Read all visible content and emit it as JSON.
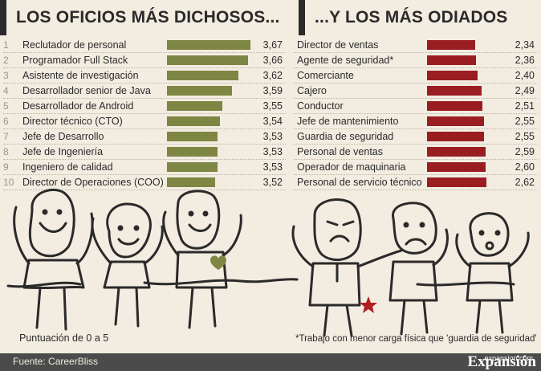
{
  "left_title": "LOS OFICIOS MÁS DICHOSOS...",
  "right_title": "...Y LOS MÁS ODIADOS",
  "scale_note": "Puntuación de 0 a 5",
  "footnote": "*Trabajo con menor carga física que 'guardia de seguridad'",
  "source": "Fuente: CareerBliss",
  "brand": "Expansión",
  "brand_url": "expansion.com",
  "colors": {
    "happy_bar": "#7d8642",
    "hated_bar": "#9a1d22",
    "background": "#f2ece1",
    "footer": "#4b4b4b",
    "star": "#b01e23",
    "heart": "#7d8642"
  },
  "chart_data": [
    {
      "type": "bar",
      "title": "LOS OFICIOS MÁS DICHOSOS...",
      "ranks": [
        "1",
        "2",
        "3",
        "4",
        "5",
        "6",
        "7",
        "8",
        "9",
        "10"
      ],
      "categories": [
        "Reclutador de personal",
        "Programador Full Stack",
        "Asistente de investigación",
        "Desarrollador senior de Java",
        "Desarrollador de Android",
        "Director técnico (CTO)",
        "Jefe de Desarrollo",
        "Jefe de Ingeniería",
        "Ingeniero de calidad",
        "Director de Operaciones (COO)"
      ],
      "values": [
        3.67,
        3.66,
        3.62,
        3.59,
        3.55,
        3.54,
        3.53,
        3.53,
        3.53,
        3.52
      ],
      "value_labels": [
        "3,67",
        "3,66",
        "3,62",
        "3,59",
        "3,55",
        "3,54",
        "3,53",
        "3,53",
        "3,53",
        "3,52"
      ],
      "orientation": "horizontal",
      "xlim": [
        0,
        5
      ]
    },
    {
      "type": "bar",
      "title": "...Y LOS MÁS ODIADOS",
      "categories": [
        "Director de ventas",
        "Agente de seguridad*",
        "Comerciante",
        "Cajero",
        "Conductor",
        "Jefe de mantenimiento",
        "Guardia de seguridad",
        "Personal de ventas",
        "Operador de maquinaria",
        "Personal de servicio técnico"
      ],
      "values": [
        2.34,
        2.36,
        2.4,
        2.49,
        2.51,
        2.55,
        2.55,
        2.59,
        2.6,
        2.62
      ],
      "value_labels": [
        "2,34",
        "2,36",
        "2,40",
        "2,49",
        "2,51",
        "2,55",
        "2,55",
        "2,59",
        "2,60",
        "2,62"
      ],
      "orientation": "horizontal",
      "xlim": [
        0,
        5
      ]
    }
  ]
}
